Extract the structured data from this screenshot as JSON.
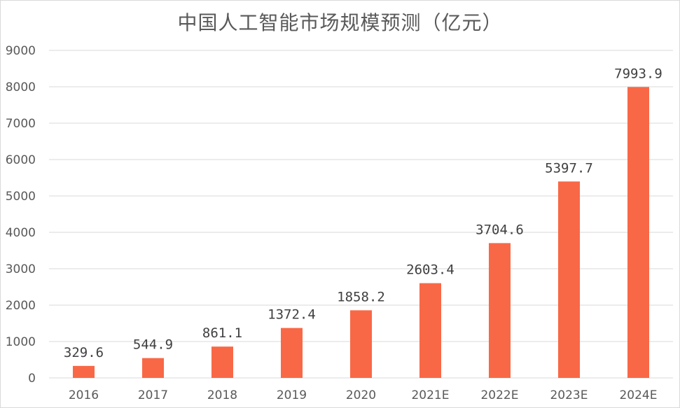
{
  "chart_data": {
    "type": "bar",
    "title": "中国人工智能市场规模预测（亿元）",
    "categories": [
      "2016",
      "2017",
      "2018",
      "2019",
      "2020",
      "2021E",
      "2022E",
      "2023E",
      "2024E"
    ],
    "values": [
      329.6,
      544.9,
      861.1,
      1372.4,
      1858.2,
      2603.4,
      3704.6,
      5397.7,
      7993.9
    ],
    "value_labels": [
      "329.6",
      "544.9",
      "861.1",
      "1372.4",
      "1858.2",
      "2603.4",
      "3704.6",
      "5397.7",
      "7993.9"
    ],
    "xlabel": "",
    "ylabel": "",
    "ylim": [
      0,
      9000
    ],
    "yticks": [
      0,
      1000,
      2000,
      3000,
      4000,
      5000,
      6000,
      7000,
      8000,
      9000
    ],
    "grid": true,
    "legend": "none",
    "bar_color": "#F96846",
    "grid_color": "#D9D9D9"
  }
}
